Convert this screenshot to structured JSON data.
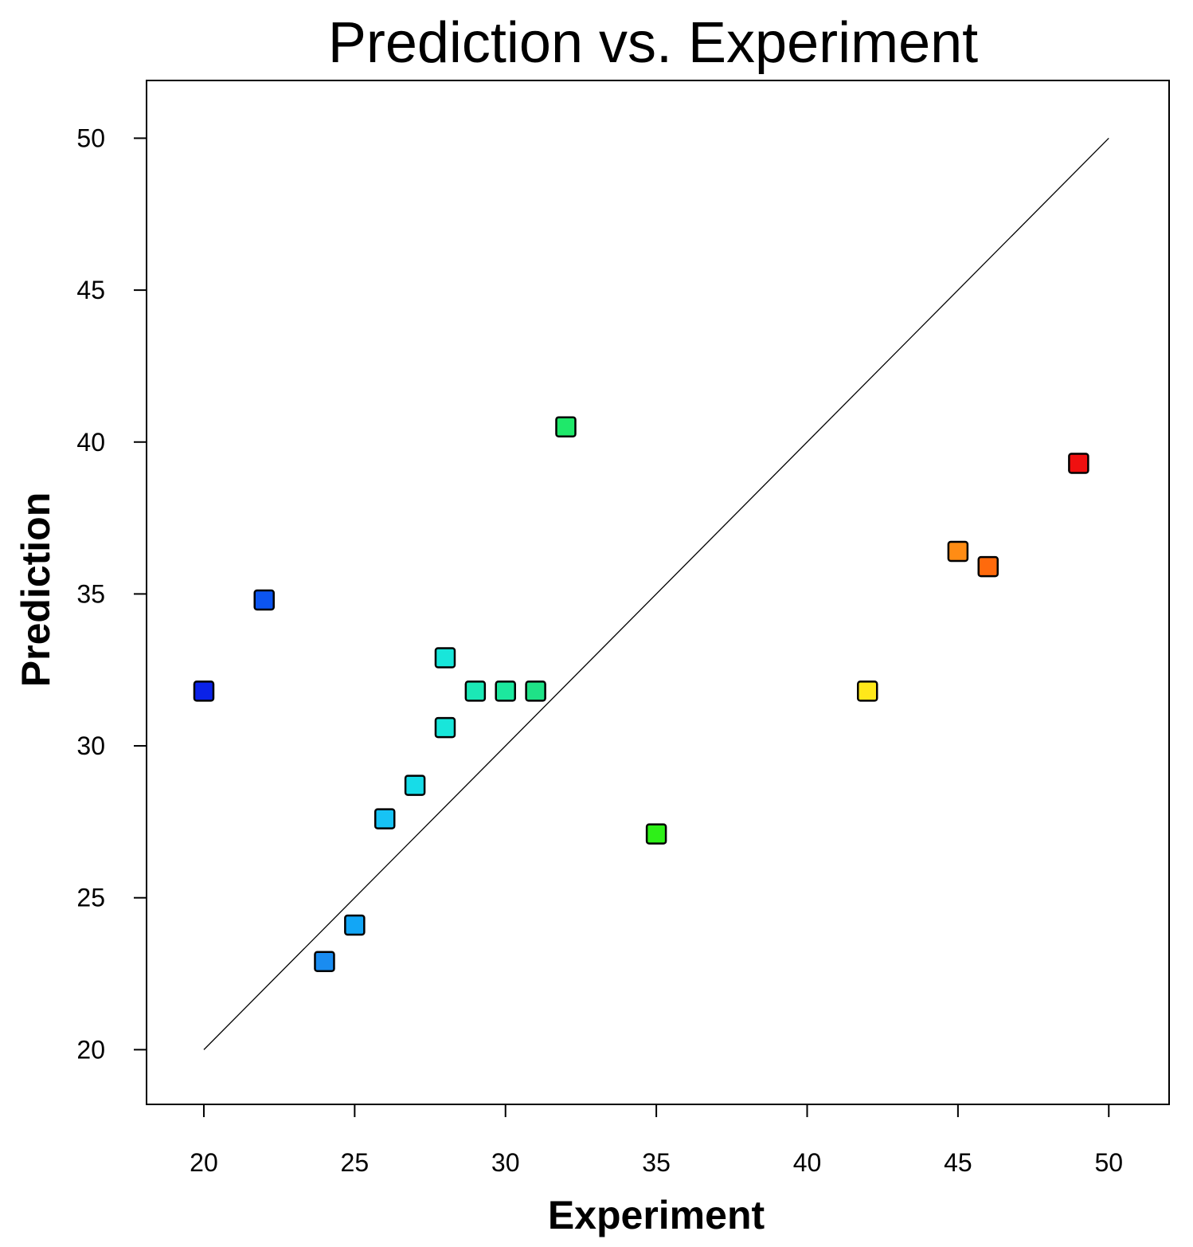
{
  "chart_data": {
    "type": "scatter",
    "title": "Prediction vs. Experiment",
    "xlabel": "Experiment",
    "ylabel": "Prediction",
    "xlim": [
      18.1,
      52.0
    ],
    "ylim": [
      18.2,
      51.9
    ],
    "xticks": [
      20,
      25,
      30,
      35,
      40,
      45,
      50
    ],
    "yticks": [
      20,
      25,
      30,
      35,
      40,
      45,
      50
    ],
    "grid": false,
    "reference_line": {
      "x": [
        20,
        50
      ],
      "y": [
        20,
        50
      ]
    },
    "points": [
      {
        "x": 20,
        "y": 31.8,
        "color": "#0a22e8"
      },
      {
        "x": 22,
        "y": 34.8,
        "color": "#0c55f0"
      },
      {
        "x": 24,
        "y": 22.9,
        "color": "#1a8cf0"
      },
      {
        "x": 25,
        "y": 24.1,
        "color": "#12a6f6"
      },
      {
        "x": 26,
        "y": 27.6,
        "color": "#17c3f5"
      },
      {
        "x": 27,
        "y": 28.7,
        "color": "#17dce8"
      },
      {
        "x": 28,
        "y": 32.9,
        "color": "#18e6da"
      },
      {
        "x": 28,
        "y": 30.6,
        "color": "#18e6da"
      },
      {
        "x": 29,
        "y": 31.8,
        "color": "#1be8b6"
      },
      {
        "x": 30,
        "y": 31.8,
        "color": "#1ce89e"
      },
      {
        "x": 31,
        "y": 31.8,
        "color": "#1fe287"
      },
      {
        "x": 32,
        "y": 40.5,
        "color": "#1fe86a"
      },
      {
        "x": 35,
        "y": 27.1,
        "color": "#2ef018"
      },
      {
        "x": 42,
        "y": 31.8,
        "color": "#ffe81a"
      },
      {
        "x": 45,
        "y": 36.4,
        "color": "#ff8c14"
      },
      {
        "x": 46,
        "y": 35.9,
        "color": "#ff6a0c"
      },
      {
        "x": 49,
        "y": 39.3,
        "color": "#f01010"
      }
    ]
  }
}
